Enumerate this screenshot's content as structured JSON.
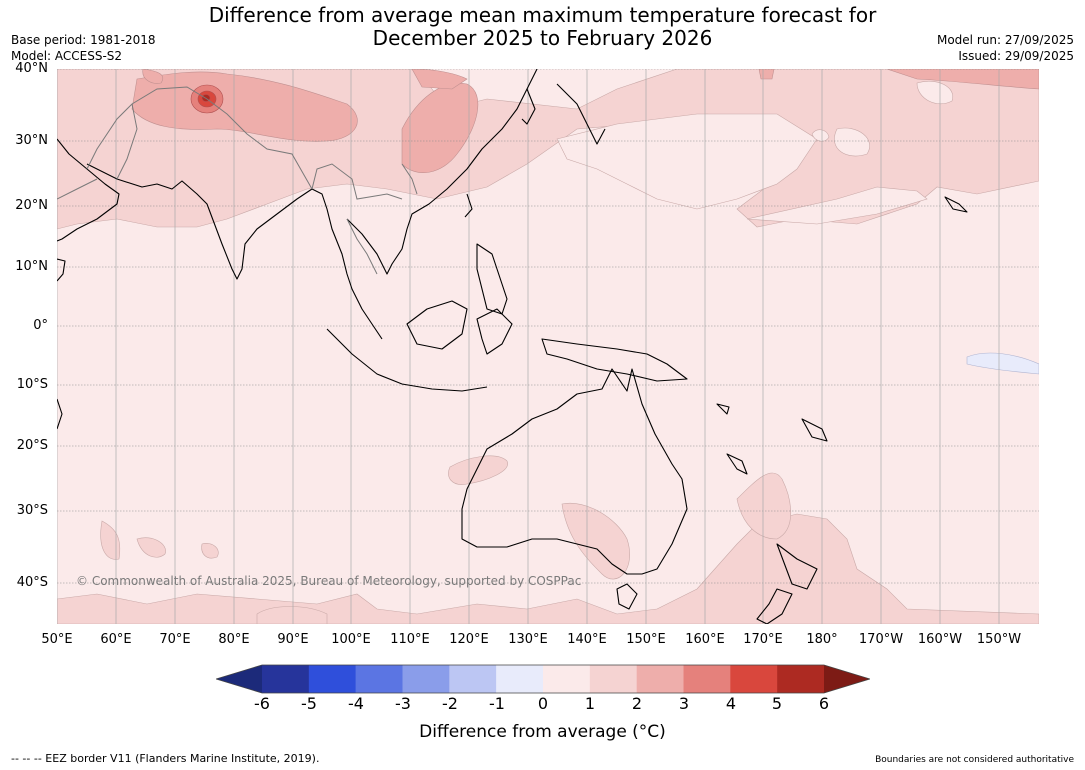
{
  "title_line1": "Difference from average mean maximum temperature forecast for",
  "title_line2": "December 2025 to February 2026",
  "meta_left": [
    "Base period: 1981-2018",
    "Model: ACCESS-S2"
  ],
  "meta_right": [
    "Model run: 27/09/2025",
    "Issued: 29/09/2025"
  ],
  "lat_labels": [
    "40°N",
    "30°N",
    "20°N",
    "10°N",
    "0°",
    "10°S",
    "20°S",
    "30°S",
    "40°S"
  ],
  "lon_labels": [
    "50°E",
    "60°E",
    "70°E",
    "80°E",
    "90°E",
    "100°E",
    "110°E",
    "120°E",
    "130°E",
    "140°E",
    "150°E",
    "160°E",
    "170°E",
    "180°",
    "170°W",
    "160°W",
    "150°W"
  ],
  "copyright": "© Commonwealth of Australia 2025, Bureau of Meteorology, supported by COSPPac",
  "legend": {
    "title": "Difference from average (°C)",
    "tick_labels": [
      "-6",
      "-5",
      "-4",
      "-3",
      "-2",
      "-1",
      "0",
      "1",
      "2",
      "3",
      "4",
      "5",
      "6"
    ],
    "colors": [
      "#26349b",
      "#2f4fdb",
      "#5b75e3",
      "#8a9dea",
      "#bcc6f3",
      "#e8ebfb",
      "#fbeaea",
      "#f5d3d2",
      "#eeaeab",
      "#e5817c",
      "#d9473d",
      "#ad2a22"
    ],
    "under_color": "#1c2a7a",
    "over_color": "#7d1b15"
  },
  "background_color": "#fbeaea",
  "footer_left": "--  --  -- EEZ border V11 (Flanders Marine Institute, 2019).",
  "footer_right": "Boundaries are not considered authoritative"
}
